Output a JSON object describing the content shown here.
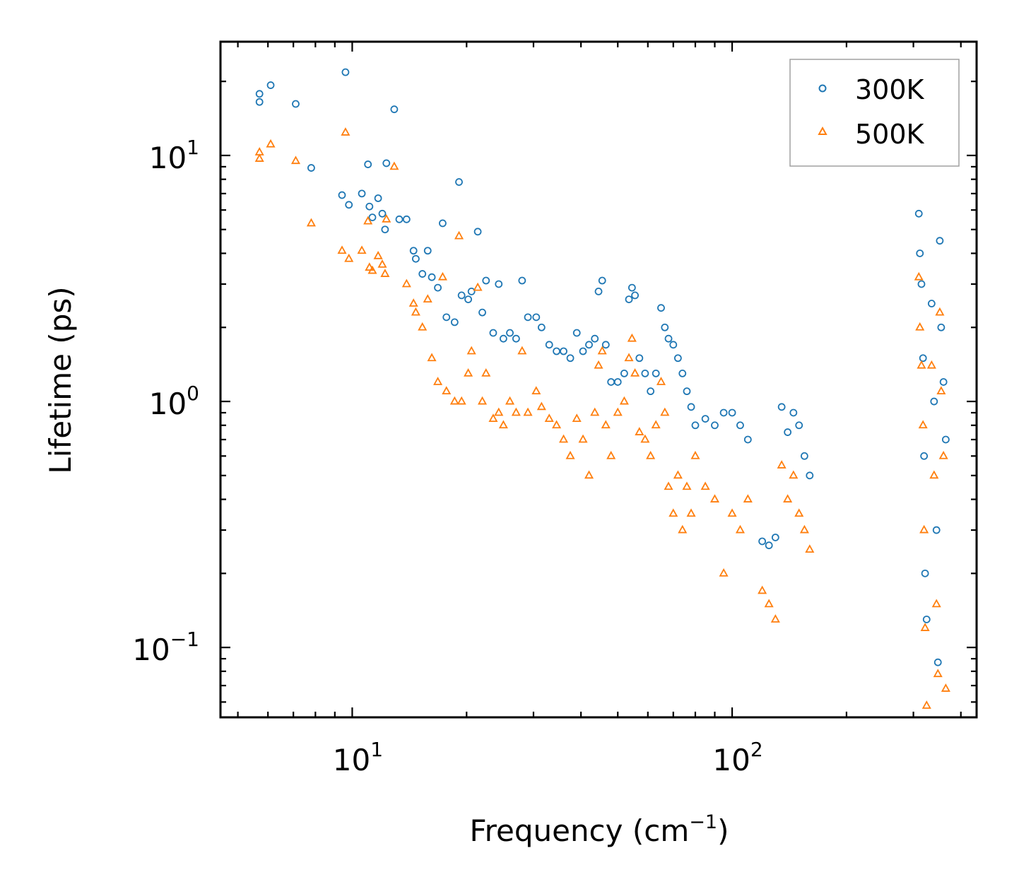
{
  "chart_data": {
    "type": "scatter",
    "title": "",
    "xlabel": "Frequency (cm",
    "xlabel_sup": "−1",
    "xlabel_end": ")",
    "ylabel": "Lifetime (ps)",
    "xscale": "log",
    "yscale": "log",
    "xlim": [
      4.5,
      440
    ],
    "ylim": [
      0.052,
      29
    ],
    "x_ticks": [
      {
        "value": 10,
        "base": "10",
        "exp": "1"
      },
      {
        "value": 100,
        "base": "10",
        "exp": "2"
      }
    ],
    "y_ticks": [
      {
        "value": 0.1,
        "base": "10",
        "exp": "−1"
      },
      {
        "value": 1,
        "base": "10",
        "exp": "0"
      },
      {
        "value": 10,
        "base": "10",
        "exp": "1"
      }
    ],
    "legend_position": "top-right",
    "series": [
      {
        "name": "300K",
        "marker": "circle",
        "color": "#1f77b4",
        "points": [
          [
            5.7,
            16.5
          ],
          [
            5.7,
            17.8
          ],
          [
            6.1,
            19.3
          ],
          [
            7.1,
            16.2
          ],
          [
            7.8,
            8.9
          ],
          [
            9.6,
            21.8
          ],
          [
            9.4,
            6.9
          ],
          [
            9.8,
            6.3
          ],
          [
            10.6,
            7.0
          ],
          [
            11.0,
            9.2
          ],
          [
            11.1,
            6.2
          ],
          [
            11.3,
            5.6
          ],
          [
            11.7,
            6.7
          ],
          [
            12.0,
            5.8
          ],
          [
            12.2,
            5.0
          ],
          [
            12.3,
            9.3
          ],
          [
            12.9,
            15.4
          ],
          [
            13.3,
            5.5
          ],
          [
            13.9,
            5.5
          ],
          [
            14.5,
            4.1
          ],
          [
            14.7,
            3.8
          ],
          [
            15.3,
            3.3
          ],
          [
            15.8,
            4.1
          ],
          [
            16.2,
            3.2
          ],
          [
            16.8,
            2.9
          ],
          [
            17.3,
            5.3
          ],
          [
            17.7,
            2.2
          ],
          [
            18.6,
            2.1
          ],
          [
            19.1,
            7.8
          ],
          [
            19.4,
            2.7
          ],
          [
            20.2,
            2.6
          ],
          [
            20.6,
            2.8
          ],
          [
            21.4,
            4.9
          ],
          [
            22.0,
            2.3
          ],
          [
            22.5,
            3.1
          ],
          [
            23.5,
            1.9
          ],
          [
            24.3,
            3.0
          ],
          [
            25.0,
            1.8
          ],
          [
            26.0,
            1.9
          ],
          [
            27.0,
            1.8
          ],
          [
            28.0,
            3.1
          ],
          [
            29.0,
            2.2
          ],
          [
            30.5,
            2.2
          ],
          [
            31.5,
            2.0
          ],
          [
            33.0,
            1.7
          ],
          [
            34.5,
            1.6
          ],
          [
            36.0,
            1.6
          ],
          [
            37.5,
            1.5
          ],
          [
            39.0,
            1.9
          ],
          [
            40.5,
            1.6
          ],
          [
            42.0,
            1.7
          ],
          [
            43.5,
            1.8
          ],
          [
            44.5,
            2.8
          ],
          [
            45.5,
            3.1
          ],
          [
            46.5,
            1.7
          ],
          [
            48.0,
            1.2
          ],
          [
            50.0,
            1.2
          ],
          [
            52.0,
            1.3
          ],
          [
            53.5,
            2.6
          ],
          [
            54.5,
            2.9
          ],
          [
            55.5,
            2.7
          ],
          [
            57.0,
            1.5
          ],
          [
            59.0,
            1.3
          ],
          [
            61.0,
            1.1
          ],
          [
            63.0,
            1.3
          ],
          [
            65.0,
            2.4
          ],
          [
            66.5,
            2.0
          ],
          [
            68.0,
            1.8
          ],
          [
            70.0,
            1.7
          ],
          [
            72.0,
            1.5
          ],
          [
            74.0,
            1.3
          ],
          [
            76.0,
            1.1
          ],
          [
            78.0,
            0.95
          ],
          [
            80.0,
            0.8
          ],
          [
            85.0,
            0.85
          ],
          [
            90.0,
            0.8
          ],
          [
            95.0,
            0.9
          ],
          [
            100.0,
            0.9
          ],
          [
            105.0,
            0.8
          ],
          [
            110.0,
            0.7
          ],
          [
            120.0,
            0.27
          ],
          [
            125.0,
            0.26
          ],
          [
            130.0,
            0.28
          ],
          [
            135.0,
            0.95
          ],
          [
            140.0,
            0.75
          ],
          [
            145.0,
            0.9
          ],
          [
            150.0,
            0.8
          ],
          [
            155.0,
            0.6
          ],
          [
            160.0,
            0.5
          ],
          [
            310.0,
            5.8
          ],
          [
            312.0,
            4.0
          ],
          [
            315.0,
            3.0
          ],
          [
            318.0,
            1.5
          ],
          [
            320.0,
            0.6
          ],
          [
            322.0,
            0.2
          ],
          [
            325.0,
            0.13
          ],
          [
            335.0,
            2.5
          ],
          [
            340.0,
            1.0
          ],
          [
            345.0,
            0.3
          ],
          [
            348.0,
            0.087
          ],
          [
            352.0,
            4.5
          ],
          [
            355.0,
            2.0
          ],
          [
            360.0,
            1.2
          ],
          [
            365.0,
            0.7
          ]
        ]
      },
      {
        "name": "500K",
        "marker": "triangle",
        "color": "#ff7f0e",
        "points": [
          [
            5.7,
            9.7
          ],
          [
            5.7,
            10.3
          ],
          [
            6.1,
            11.1
          ],
          [
            7.1,
            9.5
          ],
          [
            7.8,
            5.3
          ],
          [
            9.4,
            4.1
          ],
          [
            9.6,
            12.4
          ],
          [
            9.8,
            3.8
          ],
          [
            10.6,
            4.1
          ],
          [
            11.0,
            5.4
          ],
          [
            11.1,
            3.5
          ],
          [
            11.3,
            3.4
          ],
          [
            11.7,
            3.9
          ],
          [
            12.0,
            3.6
          ],
          [
            12.2,
            3.3
          ],
          [
            12.3,
            5.5
          ],
          [
            12.9,
            9.0
          ],
          [
            13.9,
            3.0
          ],
          [
            14.5,
            2.5
          ],
          [
            14.7,
            2.3
          ],
          [
            15.3,
            2.0
          ],
          [
            15.8,
            2.6
          ],
          [
            16.2,
            1.5
          ],
          [
            16.8,
            1.2
          ],
          [
            17.3,
            3.2
          ],
          [
            17.7,
            1.1
          ],
          [
            18.6,
            1.0
          ],
          [
            19.1,
            4.7
          ],
          [
            19.4,
            1.0
          ],
          [
            20.2,
            1.3
          ],
          [
            20.6,
            1.6
          ],
          [
            21.4,
            2.9
          ],
          [
            22.0,
            1.0
          ],
          [
            22.5,
            1.3
          ],
          [
            23.5,
            0.85
          ],
          [
            24.3,
            0.9
          ],
          [
            25.0,
            0.8
          ],
          [
            26.0,
            1.0
          ],
          [
            27.0,
            0.9
          ],
          [
            28.0,
            1.6
          ],
          [
            29.0,
            0.9
          ],
          [
            30.5,
            1.1
          ],
          [
            31.5,
            0.95
          ],
          [
            33.0,
            0.85
          ],
          [
            34.5,
            0.8
          ],
          [
            36.0,
            0.7
          ],
          [
            37.5,
            0.6
          ],
          [
            39.0,
            0.85
          ],
          [
            40.5,
            0.7
          ],
          [
            42.0,
            0.5
          ],
          [
            43.5,
            0.9
          ],
          [
            44.5,
            1.4
          ],
          [
            45.5,
            1.6
          ],
          [
            46.5,
            0.8
          ],
          [
            48.0,
            0.6
          ],
          [
            50.0,
            0.9
          ],
          [
            52.0,
            1.0
          ],
          [
            53.5,
            1.5
          ],
          [
            54.5,
            1.8
          ],
          [
            55.5,
            1.3
          ],
          [
            57.0,
            0.75
          ],
          [
            59.0,
            0.7
          ],
          [
            61.0,
            0.6
          ],
          [
            63.0,
            0.8
          ],
          [
            65.0,
            1.2
          ],
          [
            66.5,
            0.9
          ],
          [
            68.0,
            0.45
          ],
          [
            70.0,
            0.35
          ],
          [
            72.0,
            0.5
          ],
          [
            74.0,
            0.3
          ],
          [
            76.0,
            0.45
          ],
          [
            78.0,
            0.35
          ],
          [
            80.0,
            0.6
          ],
          [
            85.0,
            0.45
          ],
          [
            90.0,
            0.4
          ],
          [
            95.0,
            0.2
          ],
          [
            100.0,
            0.35
          ],
          [
            105.0,
            0.3
          ],
          [
            110.0,
            0.4
          ],
          [
            120.0,
            0.17
          ],
          [
            125.0,
            0.15
          ],
          [
            130.0,
            0.13
          ],
          [
            135.0,
            0.55
          ],
          [
            140.0,
            0.4
          ],
          [
            145.0,
            0.5
          ],
          [
            150.0,
            0.35
          ],
          [
            155.0,
            0.3
          ],
          [
            160.0,
            0.25
          ],
          [
            310.0,
            3.2
          ],
          [
            312.0,
            2.0
          ],
          [
            315.0,
            1.4
          ],
          [
            318.0,
            0.8
          ],
          [
            320.0,
            0.3
          ],
          [
            322.0,
            0.12
          ],
          [
            325.0,
            0.058
          ],
          [
            335.0,
            1.4
          ],
          [
            340.0,
            0.5
          ],
          [
            345.0,
            0.15
          ],
          [
            348.0,
            0.078
          ],
          [
            352.0,
            2.3
          ],
          [
            355.0,
            1.1
          ],
          [
            360.0,
            0.6
          ],
          [
            365.0,
            0.068
          ]
        ]
      }
    ]
  }
}
